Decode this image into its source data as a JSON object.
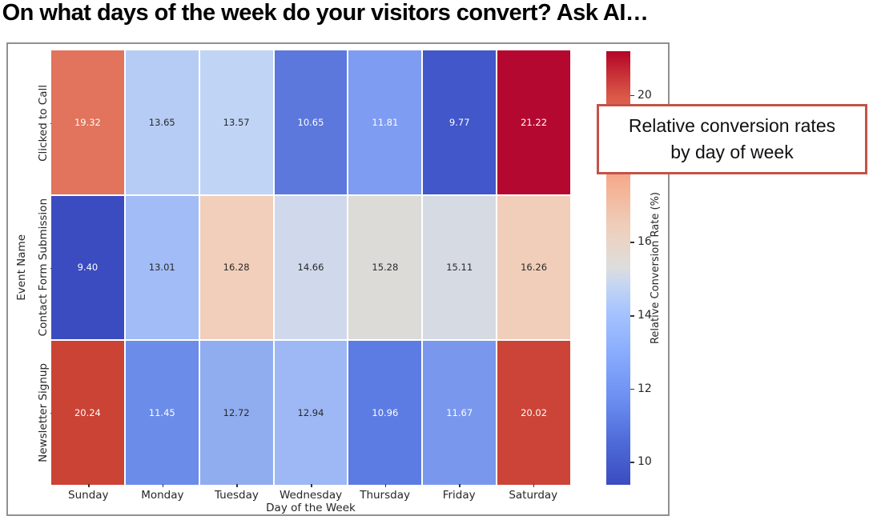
{
  "page": {
    "title": "On what days of the week do your visitors convert? Ask AI…"
  },
  "chart_data": {
    "type": "heatmap",
    "title": "On what days of the week do your visitors convert? Ask AI…",
    "xlabel": "Day of the Week",
    "ylabel": "Event Name",
    "x_categories": [
      "Sunday",
      "Monday",
      "Tuesday",
      "Wednesday",
      "Thursday",
      "Friday",
      "Saturday"
    ],
    "y_categories": [
      "Clicked to Call",
      "Contact Form Submission",
      "Newsletter Signup"
    ],
    "values": [
      [
        19.32,
        13.65,
        13.57,
        10.65,
        11.81,
        9.77,
        21.22
      ],
      [
        9.4,
        13.01,
        16.28,
        14.66,
        15.28,
        15.11,
        16.26
      ],
      [
        20.24,
        11.45,
        12.72,
        12.94,
        10.96,
        11.67,
        20.02
      ]
    ],
    "cell_colors": [
      [
        "#e2735c",
        "#b6ccf4",
        "#c0d4f6",
        "#5d78dd",
        "#7e9cf1",
        "#4257c9",
        "#b40830"
      ],
      [
        "#3b4cc0",
        "#a1bcf6",
        "#f1cfbb",
        "#cfd9eb",
        "#dcdbd8",
        "#d6dae3",
        "#f1ceba"
      ],
      [
        "#cb4335",
        "#6b8ce9",
        "#90adf0",
        "#9db8f4",
        "#5d7ce3",
        "#7a97ee",
        "#cb4437"
      ]
    ],
    "colorbar": {
      "label": "Relative Conversion Rate (%)",
      "visible_ticks": [
        10,
        12,
        14,
        16,
        20
      ],
      "vmin": 9.4,
      "vmax": 21.22,
      "colormap": "coolwarm",
      "position": "right"
    },
    "annotation": {
      "line1": "Relative conversion rates",
      "line2": "by day of week",
      "border_color": "#c45248",
      "background": "#ffffff"
    },
    "grid": false,
    "figure_border_color": "#909090"
  }
}
